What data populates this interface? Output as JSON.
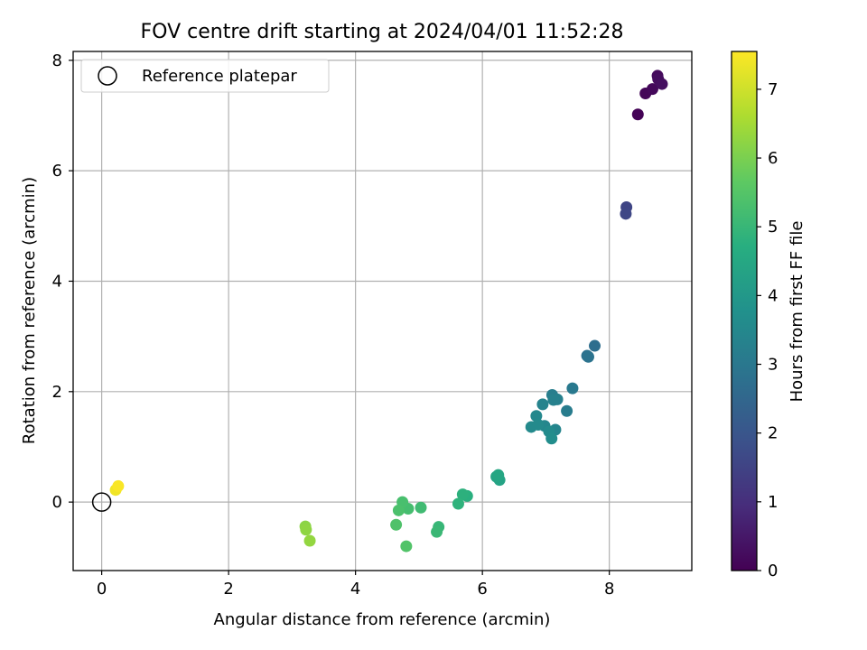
{
  "chart_data": {
    "type": "scatter",
    "title": "FOV centre drift starting at 2024/04/01 11:52:28",
    "xlabel": "Angular distance from reference (arcmin)",
    "ylabel": "Rotation from reference (arcmin)",
    "xlim": [
      -0.45,
      9.3
    ],
    "ylim": [
      -1.24,
      8.16
    ],
    "x_ticks": [
      0,
      2,
      4,
      6,
      8
    ],
    "y_ticks": [
      0,
      2,
      4,
      6,
      8
    ],
    "grid": true,
    "legend": {
      "placement": "top-left",
      "entries": [
        "Reference platepar"
      ]
    },
    "reference_point": {
      "x": 0,
      "y": 0
    },
    "colorbar": {
      "label": "Hours from first FF file",
      "range": [
        0,
        7.55
      ],
      "ticks": [
        0,
        1,
        2,
        3,
        4,
        5,
        6,
        7
      ],
      "colormap": "viridis"
    },
    "series": [
      {
        "points": [
          {
            "x": 8.45,
            "y": 7.02,
            "c": 0.05
          },
          {
            "x": 8.57,
            "y": 7.4,
            "c": 0.1
          },
          {
            "x": 8.68,
            "y": 7.48,
            "c": 0.15
          },
          {
            "x": 8.76,
            "y": 7.72,
            "c": 0.2
          },
          {
            "x": 8.77,
            "y": 7.66,
            "c": 0.25
          },
          {
            "x": 8.83,
            "y": 7.57,
            "c": 0.3
          },
          {
            "x": 8.27,
            "y": 5.34,
            "c": 1.55
          },
          {
            "x": 8.26,
            "y": 5.22,
            "c": 1.6
          },
          {
            "x": 7.77,
            "y": 2.83,
            "c": 2.7
          },
          {
            "x": 7.65,
            "y": 2.65,
            "c": 2.8
          },
          {
            "x": 7.67,
            "y": 2.63,
            "c": 2.85
          },
          {
            "x": 7.42,
            "y": 2.06,
            "c": 3.05
          },
          {
            "x": 7.33,
            "y": 1.65,
            "c": 3.15
          },
          {
            "x": 7.1,
            "y": 1.94,
            "c": 3.2
          },
          {
            "x": 7.18,
            "y": 1.86,
            "c": 3.25
          },
          {
            "x": 7.12,
            "y": 1.85,
            "c": 3.3
          },
          {
            "x": 6.95,
            "y": 1.77,
            "c": 3.35
          },
          {
            "x": 7.15,
            "y": 1.31,
            "c": 3.4
          },
          {
            "x": 6.98,
            "y": 1.38,
            "c": 3.45
          },
          {
            "x": 6.85,
            "y": 1.56,
            "c": 3.5
          },
          {
            "x": 6.77,
            "y": 1.36,
            "c": 3.55
          },
          {
            "x": 6.88,
            "y": 1.4,
            "c": 3.55
          },
          {
            "x": 7.05,
            "y": 1.28,
            "c": 3.6
          },
          {
            "x": 7.09,
            "y": 1.15,
            "c": 3.65
          },
          {
            "x": 6.27,
            "y": 0.4,
            "c": 4.35
          },
          {
            "x": 6.22,
            "y": 0.46,
            "c": 4.4
          },
          {
            "x": 6.25,
            "y": 0.49,
            "c": 4.45
          },
          {
            "x": 5.76,
            "y": 0.11,
            "c": 4.75
          },
          {
            "x": 5.69,
            "y": 0.14,
            "c": 4.8
          },
          {
            "x": 5.62,
            "y": -0.03,
            "c": 4.85
          },
          {
            "x": 5.31,
            "y": -0.45,
            "c": 5.0
          },
          {
            "x": 5.28,
            "y": -0.54,
            "c": 5.05
          },
          {
            "x": 5.03,
            "y": -0.1,
            "c": 5.15
          },
          {
            "x": 4.83,
            "y": -0.12,
            "c": 5.25
          },
          {
            "x": 4.74,
            "y": 0.0,
            "c": 5.3
          },
          {
            "x": 4.68,
            "y": -0.15,
            "c": 5.35
          },
          {
            "x": 4.64,
            "y": -0.41,
            "c": 5.4
          },
          {
            "x": 4.8,
            "y": -0.8,
            "c": 5.45
          },
          {
            "x": 3.21,
            "y": -0.44,
            "c": 6.2
          },
          {
            "x": 3.22,
            "y": -0.5,
            "c": 6.25
          },
          {
            "x": 3.28,
            "y": -0.7,
            "c": 6.3
          },
          {
            "x": 0.22,
            "y": 0.22,
            "c": 7.4
          },
          {
            "x": 0.26,
            "y": 0.29,
            "c": 7.5
          }
        ]
      }
    ]
  }
}
